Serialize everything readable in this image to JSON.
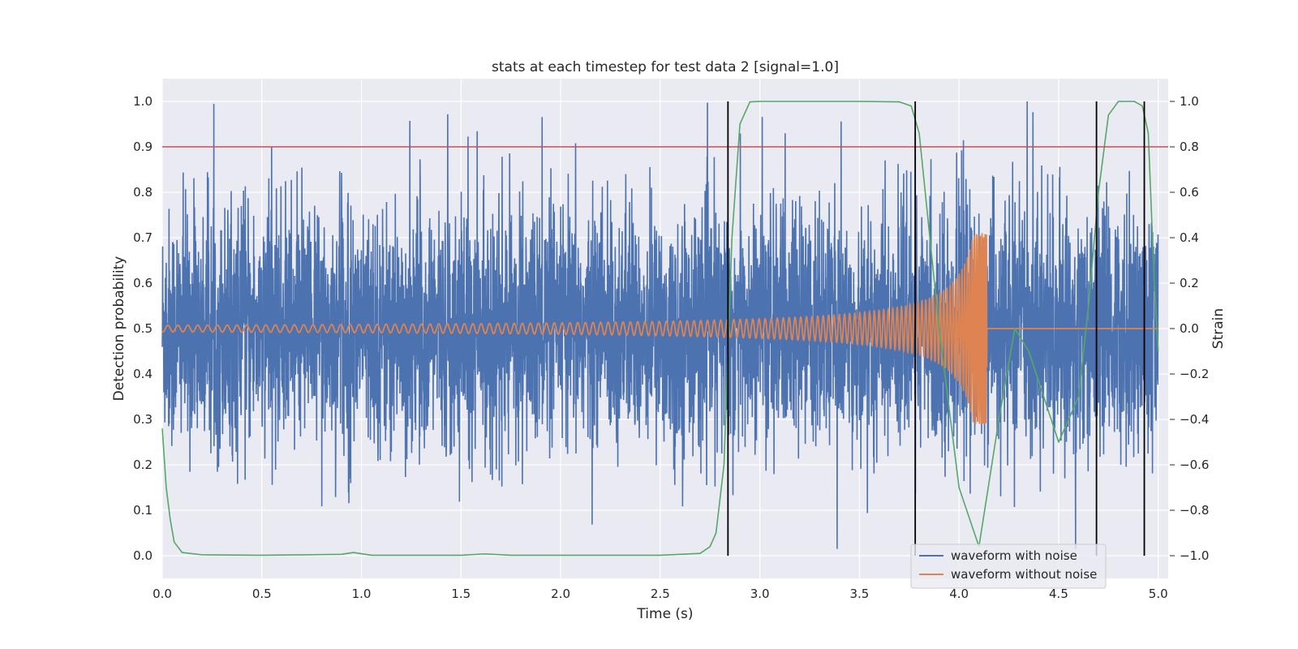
{
  "chart_data": {
    "type": "line",
    "title": "stats at each timestep for test data 2 [signal=1.0]",
    "xlabel": "Time (s)",
    "ylabel": "Detection probability",
    "y2label": "Strain",
    "xlim": [
      0.0,
      5.05
    ],
    "ylim": [
      -0.05,
      1.05
    ],
    "y2lim": [
      -1.1,
      1.1
    ],
    "xticks": [
      "0.0",
      "0.5",
      "1.0",
      "1.5",
      "2.0",
      "2.5",
      "3.0",
      "3.5",
      "4.0",
      "4.5",
      "5.0"
    ],
    "yticks": [
      "0.0",
      "0.1",
      "0.2",
      "0.3",
      "0.4",
      "0.5",
      "0.6",
      "0.7",
      "0.8",
      "0.9",
      "1.0"
    ],
    "y2ticks": [
      "−1.0",
      "−0.8",
      "−0.6",
      "−0.4",
      "−0.2",
      "0.0",
      "0.2",
      "0.4",
      "0.6",
      "0.8",
      "1.0"
    ],
    "grid": true,
    "legend_position": "lower-right",
    "threshold": 0.9,
    "event_markers": [
      2.84,
      3.78,
      4.69,
      4.93
    ],
    "series": [
      {
        "name": "waveform with noise",
        "axis": "right",
        "color": "#4c72b0",
        "note_values": "dense noise: 5000 samples, strain range about -0.95 to 1.0"
      },
      {
        "name": "waveform without noise",
        "axis": "right",
        "color": "#dd8452",
        "note_values": "chirp: amplitude ~0.01 rising to ~0.42 at 4.14 s, then 0"
      },
      {
        "axis": "left",
        "color": "#55a868",
        "x": [
          0.0,
          0.02,
          0.04,
          0.06,
          0.1,
          0.2,
          0.5,
          0.9,
          0.96,
          1.05,
          1.5,
          1.62,
          1.75,
          2.5,
          2.7,
          2.75,
          2.78,
          2.82,
          2.86,
          2.9,
          2.95,
          3.0,
          3.5,
          3.7,
          3.76,
          3.8,
          3.9,
          4.0,
          4.1,
          4.2,
          4.28,
          4.35,
          4.5,
          4.6,
          4.65,
          4.7,
          4.75,
          4.8,
          4.88,
          4.92,
          4.95,
          4.98,
          5.0
        ],
        "y": [
          0.28,
          0.15,
          0.08,
          0.03,
          0.007,
          0.002,
          0.001,
          0.003,
          0.007,
          0.001,
          0.001,
          0.004,
          0.001,
          0.001,
          0.005,
          0.02,
          0.05,
          0.2,
          0.7,
          0.95,
          0.999,
          1.0,
          1.0,
          0.999,
          0.99,
          0.93,
          0.5,
          0.15,
          0.02,
          0.3,
          0.5,
          0.45,
          0.25,
          0.35,
          0.55,
          0.8,
          0.97,
          1.0,
          1.0,
          0.99,
          0.93,
          0.6,
          0.45
        ]
      },
      {
        "axis": "left",
        "color": "#c44e52",
        "x": [
          0.0,
          5.05
        ],
        "y": [
          0.9,
          0.9
        ]
      }
    ],
    "legend": [
      {
        "label": "waveform with noise",
        "color": "#4c72b0"
      },
      {
        "label": "waveform without noise",
        "color": "#dd8452"
      }
    ]
  }
}
